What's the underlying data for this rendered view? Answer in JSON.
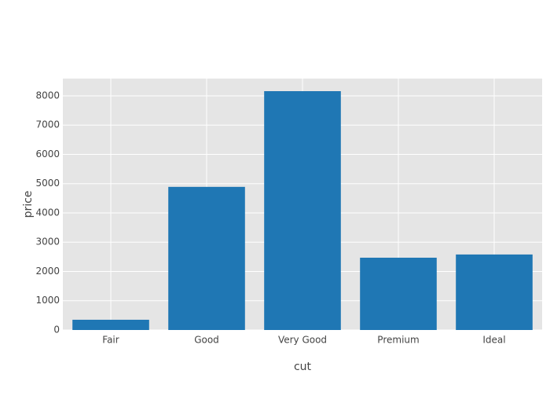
{
  "chart_data": {
    "type": "bar",
    "x_label": "cut",
    "y_label": "price",
    "categories": [
      "Fair",
      "Good",
      "Very Good",
      "Premium",
      "Ideal"
    ],
    "values": [
      350,
      4890,
      8160,
      2470,
      2580
    ],
    "color": "#1f77b4",
    "ylim": [
      0,
      8590
    ],
    "yticks": [
      0,
      1000,
      2000,
      3000,
      4000,
      5000,
      6000,
      7000,
      8000
    ],
    "grid": true
  }
}
